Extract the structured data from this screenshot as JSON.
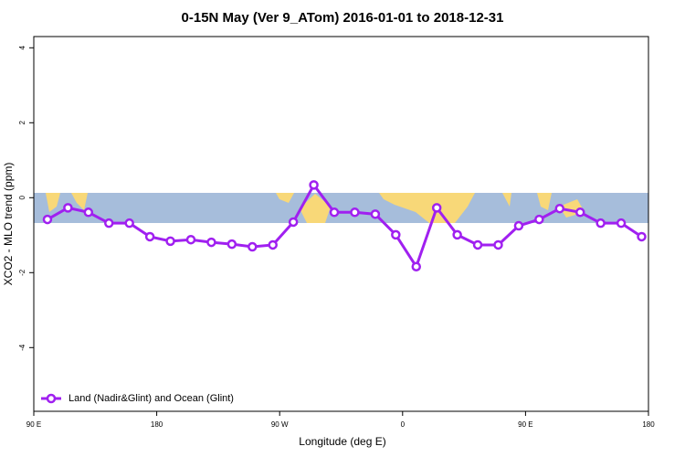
{
  "chart_data": {
    "type": "line",
    "title": "0-15N May (Ver 9_ATom)   2016-01-01 to 2018-12-31",
    "x_label": "Longitude (deg E)",
    "y_label": "XCO2 - MLO trend (ppm)",
    "x": [
      100,
      115,
      130,
      145,
      160,
      175,
      190,
      205,
      220,
      235,
      250,
      265,
      280,
      295,
      310,
      325,
      340,
      355,
      370,
      385,
      400,
      415,
      430,
      445,
      460,
      475,
      490,
      505,
      520,
      535
    ],
    "series": [
      {
        "name": "Land (Nadir&Glint) and Ocean (Glint)",
        "color": "#a020f0",
        "values": [
          -0.58,
          -0.27,
          -0.39,
          -0.68,
          -0.68,
          -1.04,
          -1.16,
          -1.12,
          -1.19,
          -1.24,
          -1.31,
          -1.26,
          -0.65,
          0.34,
          -0.39,
          -0.39,
          -0.44,
          -0.99,
          -1.84,
          -0.27,
          -0.99,
          -1.26,
          -1.26,
          -0.75,
          -0.58,
          -0.29,
          -0.39,
          -0.68,
          -0.68,
          -1.04
        ]
      }
    ],
    "xlim": [
      90,
      540
    ],
    "xticks": [
      {
        "value": 90,
        "label": "90 E"
      },
      {
        "value": 180,
        "label": "180"
      },
      {
        "value": 270,
        "label": "90 W"
      },
      {
        "value": 360,
        "label": "0"
      },
      {
        "value": 450,
        "label": "90 E"
      },
      {
        "value": 540,
        "label": "180"
      }
    ],
    "ylim": [
      -5.7,
      4.3
    ],
    "yticks": [
      -4,
      -2,
      0,
      2,
      4
    ],
    "legend": "bottom-left"
  }
}
